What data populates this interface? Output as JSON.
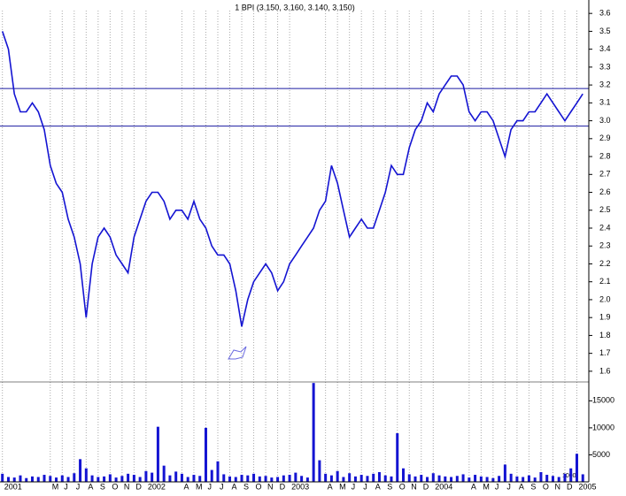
{
  "chart_data": [
    {
      "type": "line",
      "title": "1 BPI (3.150, 3.160, 3.140, 3.150)",
      "color": "#1414d2",
      "x": [
        0,
        0.5,
        1,
        1.5,
        2,
        2.5,
        3,
        3.5,
        4,
        4.5,
        5,
        5.5,
        6,
        6.5,
        7,
        7.5,
        8,
        8.5,
        9,
        9.5,
        10,
        10.5,
        11,
        11.5,
        12,
        12.5,
        13,
        13.5,
        14,
        14.5,
        15,
        15.5,
        16,
        16.5,
        17,
        17.5,
        18,
        18.5,
        19,
        19.5,
        20,
        20.5,
        21,
        21.5,
        22,
        22.5,
        23,
        23.5,
        24,
        24.5,
        25,
        25.5,
        26,
        26.5,
        27,
        27.5,
        28,
        28.5,
        29,
        29.5,
        30,
        30.5,
        31,
        31.5,
        32,
        32.5,
        33,
        33.5,
        34,
        34.5,
        35,
        35.5,
        36,
        36.5,
        37,
        37.5,
        38,
        38.5,
        39,
        39.5,
        40,
        40.5,
        41,
        41.5,
        42,
        42.5,
        43,
        43.5,
        44,
        44.5,
        45,
        45.5,
        46,
        46.5,
        47,
        47.5,
        48,
        48.5
      ],
      "values": [
        3.5,
        3.4,
        3.15,
        3.05,
        3.05,
        3.1,
        3.05,
        2.95,
        2.75,
        2.65,
        2.6,
        2.45,
        2.35,
        2.2,
        1.9,
        2.2,
        2.35,
        2.4,
        2.35,
        2.25,
        2.2,
        2.15,
        2.35,
        2.45,
        2.55,
        2.6,
        2.6,
        2.55,
        2.45,
        2.5,
        2.5,
        2.45,
        2.55,
        2.45,
        2.4,
        2.3,
        2.25,
        2.25,
        2.2,
        2.05,
        1.85,
        2.0,
        2.1,
        2.15,
        2.2,
        2.15,
        2.05,
        2.1,
        2.2,
        2.25,
        2.3,
        2.35,
        2.4,
        2.5,
        2.55,
        2.75,
        2.65,
        2.5,
        2.35,
        2.4,
        2.45,
        2.4,
        2.4,
        2.5,
        2.6,
        2.75,
        2.7,
        2.7,
        2.85,
        2.95,
        3.0,
        3.1,
        3.05,
        3.15,
        3.2,
        3.25,
        3.25,
        3.2,
        3.05,
        3.0,
        3.05,
        3.05,
        3.0,
        2.9,
        2.8,
        2.95,
        3.0,
        3.0,
        3.05,
        3.05,
        3.1,
        3.15,
        3.1,
        3.05,
        3.0,
        3.05,
        3.1,
        3.15
      ],
      "reference_lines": [
        3.18,
        2.97
      ],
      "xlim": [
        -0.2,
        49
      ],
      "xticks": [
        {
          "value": 0,
          "label": "2001"
        },
        {
          "value": 4,
          "label": "M"
        },
        {
          "value": 5,
          "label": "J"
        },
        {
          "value": 6,
          "label": "J"
        },
        {
          "value": 7,
          "label": "A"
        },
        {
          "value": 8,
          "label": "S"
        },
        {
          "value": 9,
          "label": "O"
        },
        {
          "value": 10,
          "label": "N"
        },
        {
          "value": 11,
          "label": "D"
        },
        {
          "value": 12,
          "label": "2002"
        },
        {
          "value": 15,
          "label": "A"
        },
        {
          "value": 16,
          "label": "M"
        },
        {
          "value": 17,
          "label": "J"
        },
        {
          "value": 18,
          "label": "J"
        },
        {
          "value": 19,
          "label": "A"
        },
        {
          "value": 20,
          "label": "S"
        },
        {
          "value": 21,
          "label": "O"
        },
        {
          "value": 22,
          "label": "N"
        },
        {
          "value": 23,
          "label": "D"
        },
        {
          "value": 24,
          "label": "2003"
        },
        {
          "value": 27,
          "label": "A"
        },
        {
          "value": 28,
          "label": "M"
        },
        {
          "value": 29,
          "label": "J"
        },
        {
          "value": 30,
          "label": "J"
        },
        {
          "value": 31,
          "label": "A"
        },
        {
          "value": 32,
          "label": "S"
        },
        {
          "value": 33,
          "label": "O"
        },
        {
          "value": 34,
          "label": "N"
        },
        {
          "value": 35,
          "label": "D"
        },
        {
          "value": 36,
          "label": "2004"
        },
        {
          "value": 39,
          "label": "A"
        },
        {
          "value": 40,
          "label": "M"
        },
        {
          "value": 41,
          "label": "J"
        },
        {
          "value": 42,
          "label": "J"
        },
        {
          "value": 43,
          "label": "A"
        },
        {
          "value": 44,
          "label": "S"
        },
        {
          "value": 45,
          "label": "O"
        },
        {
          "value": 46,
          "label": "N"
        },
        {
          "value": 47,
          "label": "D"
        },
        {
          "value": 48,
          "label": "2005"
        }
      ],
      "ylim": [
        1.55,
        3.675
      ],
      "yticks": [
        1.6,
        1.7,
        1.8,
        1.9,
        {
          "value": 2.0,
          "label": "2.0"
        },
        2.1,
        2.2,
        2.3,
        2.4,
        2.5,
        2.6,
        2.7,
        2.8,
        2.9,
        {
          "value": 3.0,
          "label": "3.0"
        },
        3.1,
        3.2,
        3.3,
        3.4,
        3.5,
        3.6
      ],
      "grid": true
    },
    {
      "type": "bar",
      "color": "#1414d2",
      "unit_label": "1000",
      "values": [
        1500,
        900,
        800,
        1200,
        700,
        1000,
        900,
        1300,
        1100,
        800,
        1200,
        900,
        1600,
        4200,
        2500,
        1200,
        900,
        1000,
        1400,
        800,
        1100,
        1500,
        1300,
        900,
        2000,
        1700,
        10200,
        3000,
        1200,
        1900,
        1500,
        900,
        1300,
        1100,
        10000,
        2200,
        3800,
        1400,
        1000,
        900,
        1300,
        1200,
        1500,
        1000,
        1100,
        800,
        900,
        1200,
        1300,
        1700,
        1100,
        800,
        18300,
        4000,
        1500,
        1200,
        2000,
        900,
        1600,
        1000,
        1300,
        1100,
        1500,
        1800,
        1200,
        1000,
        9000,
        2500,
        1400,
        1000,
        1300,
        900,
        1600,
        1200,
        1000,
        900,
        1100,
        1400,
        800,
        1300,
        1000,
        900,
        700,
        1100,
        3200,
        1500,
        1000,
        900,
        1200,
        800,
        1800,
        1300,
        1100,
        900,
        1500,
        2500,
        5200,
        1400
      ],
      "ylim": [
        0,
        18000
      ],
      "yticks": [
        5000,
        10000,
        15000
      ]
    }
  ]
}
